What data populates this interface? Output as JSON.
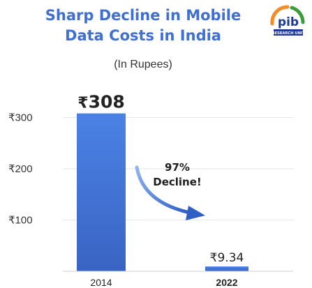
{
  "header": {
    "title_line1": "Sharp Decline in Mobile",
    "title_line2": "Data Costs in India",
    "subtitle": "(In Rupees)"
  },
  "logo": {
    "text": "pib",
    "subtext": "RESEARCH UNIT",
    "colors": {
      "saffron": "#f28c28",
      "green": "#3a9d3a",
      "navy": "#1f3a93"
    }
  },
  "annotation": {
    "line1": "97%",
    "line2": "Decline!"
  },
  "chart_data": {
    "type": "bar",
    "categories": [
      "2014",
      "2022"
    ],
    "values": [
      308,
      9.34
    ],
    "value_labels_prefix": "₹",
    "value_labels": [
      "308",
      "9.34"
    ],
    "ylim": [
      0,
      320
    ],
    "y_ticks": [
      100,
      200,
      300
    ],
    "y_tick_labels": [
      "₹100",
      "₹200",
      "₹300"
    ],
    "grid": true,
    "bar_color_top": "#4a82e4",
    "bar_color_bottom": "#3a64c4",
    "title_color": "#3f6fd0"
  }
}
